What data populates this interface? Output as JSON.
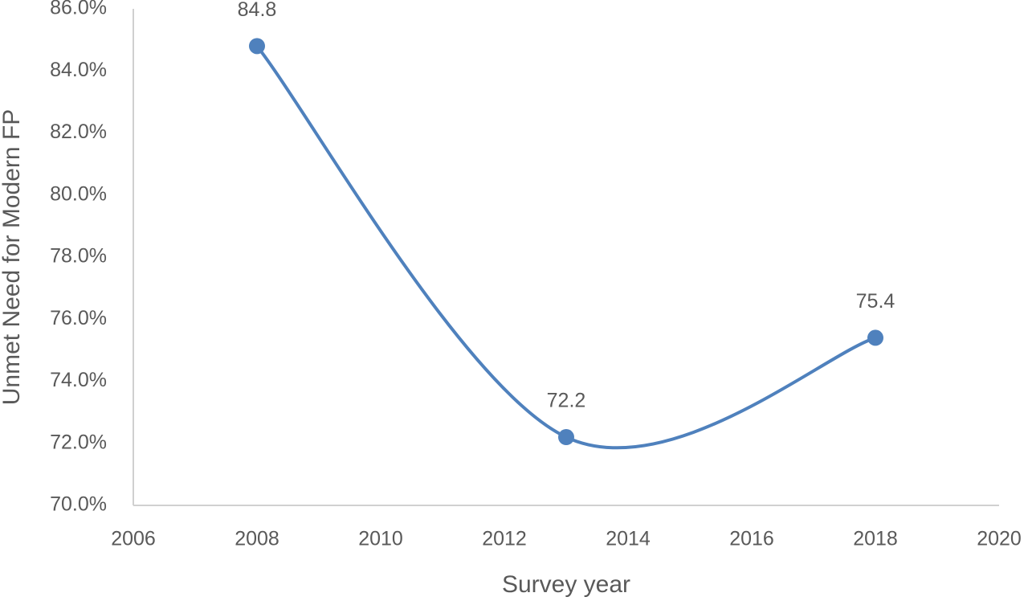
{
  "chart_data": {
    "type": "scatter-smooth",
    "x_label": "Survey year",
    "y_label": "Unmet Need for Modern FP",
    "x": [
      2008,
      2013,
      2018
    ],
    "series": [
      {
        "color": "#4f81bd",
        "values": [
          84.8,
          72.2,
          75.4
        ]
      }
    ],
    "xlim": [
      2006,
      2020
    ],
    "xticks": [
      2006,
      2008,
      2010,
      2012,
      2014,
      2016,
      2018,
      2020
    ],
    "ylim": [
      70,
      86
    ],
    "yticks": [
      {
        "value": 70,
        "label": "70.0%"
      },
      {
        "value": 72,
        "label": "72.0%"
      },
      {
        "value": 74,
        "label": "74.0%"
      },
      {
        "value": 76,
        "label": "76.0%"
      },
      {
        "value": 78,
        "label": "78.0%"
      },
      {
        "value": 80,
        "label": "80.0%"
      },
      {
        "value": 82,
        "label": "82.0%"
      },
      {
        "value": 84,
        "label": "84.0%"
      },
      {
        "value": 86,
        "label": "86.0%"
      }
    ],
    "grid": false
  }
}
